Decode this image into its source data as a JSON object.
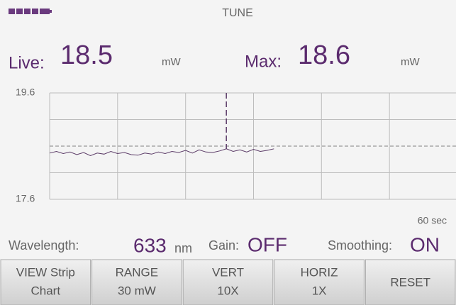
{
  "header": {
    "title": "TUNE"
  },
  "readings": {
    "live": {
      "label": "Live:",
      "value": 18.5,
      "unit": "mW"
    },
    "max": {
      "label": "Max:",
      "value": 18.6,
      "unit": "mW"
    }
  },
  "chart_data": {
    "type": "line",
    "x": [
      0,
      1,
      2,
      3,
      4,
      5,
      6,
      7,
      8,
      9,
      10,
      11,
      12,
      13,
      14,
      15,
      16,
      17,
      18,
      19,
      20,
      21,
      22,
      23,
      24,
      25,
      26,
      27,
      28,
      29,
      30,
      31,
      32,
      33
    ],
    "values": [
      18.47,
      18.5,
      18.46,
      18.49,
      18.44,
      18.48,
      18.42,
      18.47,
      18.45,
      18.5,
      18.46,
      18.48,
      18.44,
      18.43,
      18.47,
      18.45,
      18.49,
      18.46,
      18.5,
      18.48,
      18.52,
      18.47,
      18.53,
      18.49,
      18.48,
      18.51,
      18.55,
      18.5,
      18.53,
      18.49,
      18.54,
      18.5,
      18.52,
      18.55
    ],
    "color": "#5a3a66",
    "xlim": [
      0,
      60
    ],
    "ylim": [
      17.6,
      19.6
    ],
    "yticks": [
      17.6,
      19.6
    ],
    "xlabel": "60 sec"
  },
  "settings": {
    "wavelength": {
      "label": "Wavelength:",
      "value": 633,
      "unit": "nm"
    },
    "gain": {
      "label": "Gain:",
      "value": "OFF"
    },
    "smoothing": {
      "label": "Smoothing:",
      "value": "ON"
    }
  },
  "buttons": [
    [
      "VIEW Strip",
      "Chart"
    ],
    [
      "RANGE",
      "30 mW"
    ],
    [
      "VERT",
      "10X"
    ],
    [
      "HORIZ",
      "1X"
    ],
    [
      "RESET"
    ]
  ]
}
